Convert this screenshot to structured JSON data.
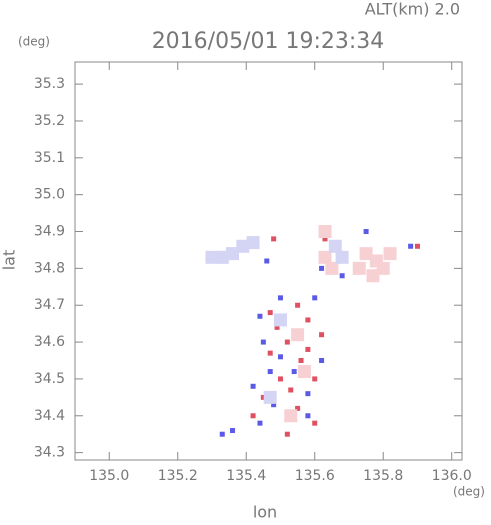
{
  "chart_data": {
    "type": "scatter",
    "title": "2016/05/01 19:23:34",
    "subtitle": "ALT(km) 2.0",
    "y_unit": "(deg)",
    "x_unit": "(deg)",
    "x_label": "lon",
    "y_label": "lat",
    "xlim": [
      134.9,
      136.03
    ],
    "ylim": [
      34.28,
      35.36
    ],
    "xticks": [
      {
        "value": 135,
        "label": "135.0"
      },
      135.2,
      135.4,
      135.6,
      135.8,
      {
        "value": 136,
        "label": "136.0"
      }
    ],
    "yticks": [
      34.3,
      34.4,
      34.5,
      34.6,
      34.7,
      34.8,
      34.9,
      {
        "value": 35,
        "label": "35.0"
      },
      35.1,
      35.2,
      35.3
    ],
    "series": [
      {
        "color": "#e05060",
        "x": [
          135.47,
          135.55,
          135.58,
          135.52,
          135.56,
          135.5,
          135.45,
          135.55,
          135.6,
          135.49,
          135.62,
          135.53,
          135.42,
          135.6,
          135.47,
          135.48,
          135.63,
          135.9,
          135.58,
          135.52
        ],
        "values": [
          34.68,
          34.7,
          34.66,
          34.6,
          34.55,
          34.5,
          34.45,
          34.42,
          34.38,
          34.64,
          34.62,
          34.47,
          34.4,
          34.5,
          34.57,
          34.88,
          34.88,
          34.86,
          34.58,
          34.35
        ]
      },
      {
        "color": "#5a5ae6",
        "x": [
          135.44,
          135.5,
          135.6,
          135.45,
          135.54,
          135.62,
          135.47,
          135.58,
          135.48,
          135.44,
          135.36,
          135.33,
          135.42,
          135.58,
          135.5,
          135.54,
          135.46,
          135.37,
          135.68,
          135.75,
          135.62,
          135.88,
          135.64
        ],
        "values": [
          34.67,
          34.72,
          34.72,
          34.6,
          34.63,
          34.55,
          34.52,
          34.46,
          34.43,
          34.38,
          34.36,
          34.35,
          34.48,
          34.4,
          34.56,
          34.52,
          34.82,
          34.85,
          34.78,
          34.9,
          34.8,
          34.86,
          34.84
        ]
      },
      {
        "color": "#f7d0d4",
        "x": [
          135.75,
          135.78,
          135.8,
          135.73,
          135.77,
          135.82,
          135.63,
          135.65,
          135.63,
          135.55,
          135.53,
          135.57
        ],
        "values": [
          34.84,
          34.82,
          34.8,
          34.8,
          34.78,
          34.84,
          34.83,
          34.8,
          34.9,
          34.62,
          34.4,
          34.52
        ]
      },
      {
        "color": "#d4d4f5",
        "x": [
          135.33,
          135.36,
          135.39,
          135.42,
          135.3,
          135.66,
          135.68,
          135.5,
          135.47
        ],
        "values": [
          34.83,
          34.84,
          34.86,
          34.87,
          34.83,
          34.86,
          34.83,
          34.66,
          34.45
        ]
      }
    ]
  }
}
